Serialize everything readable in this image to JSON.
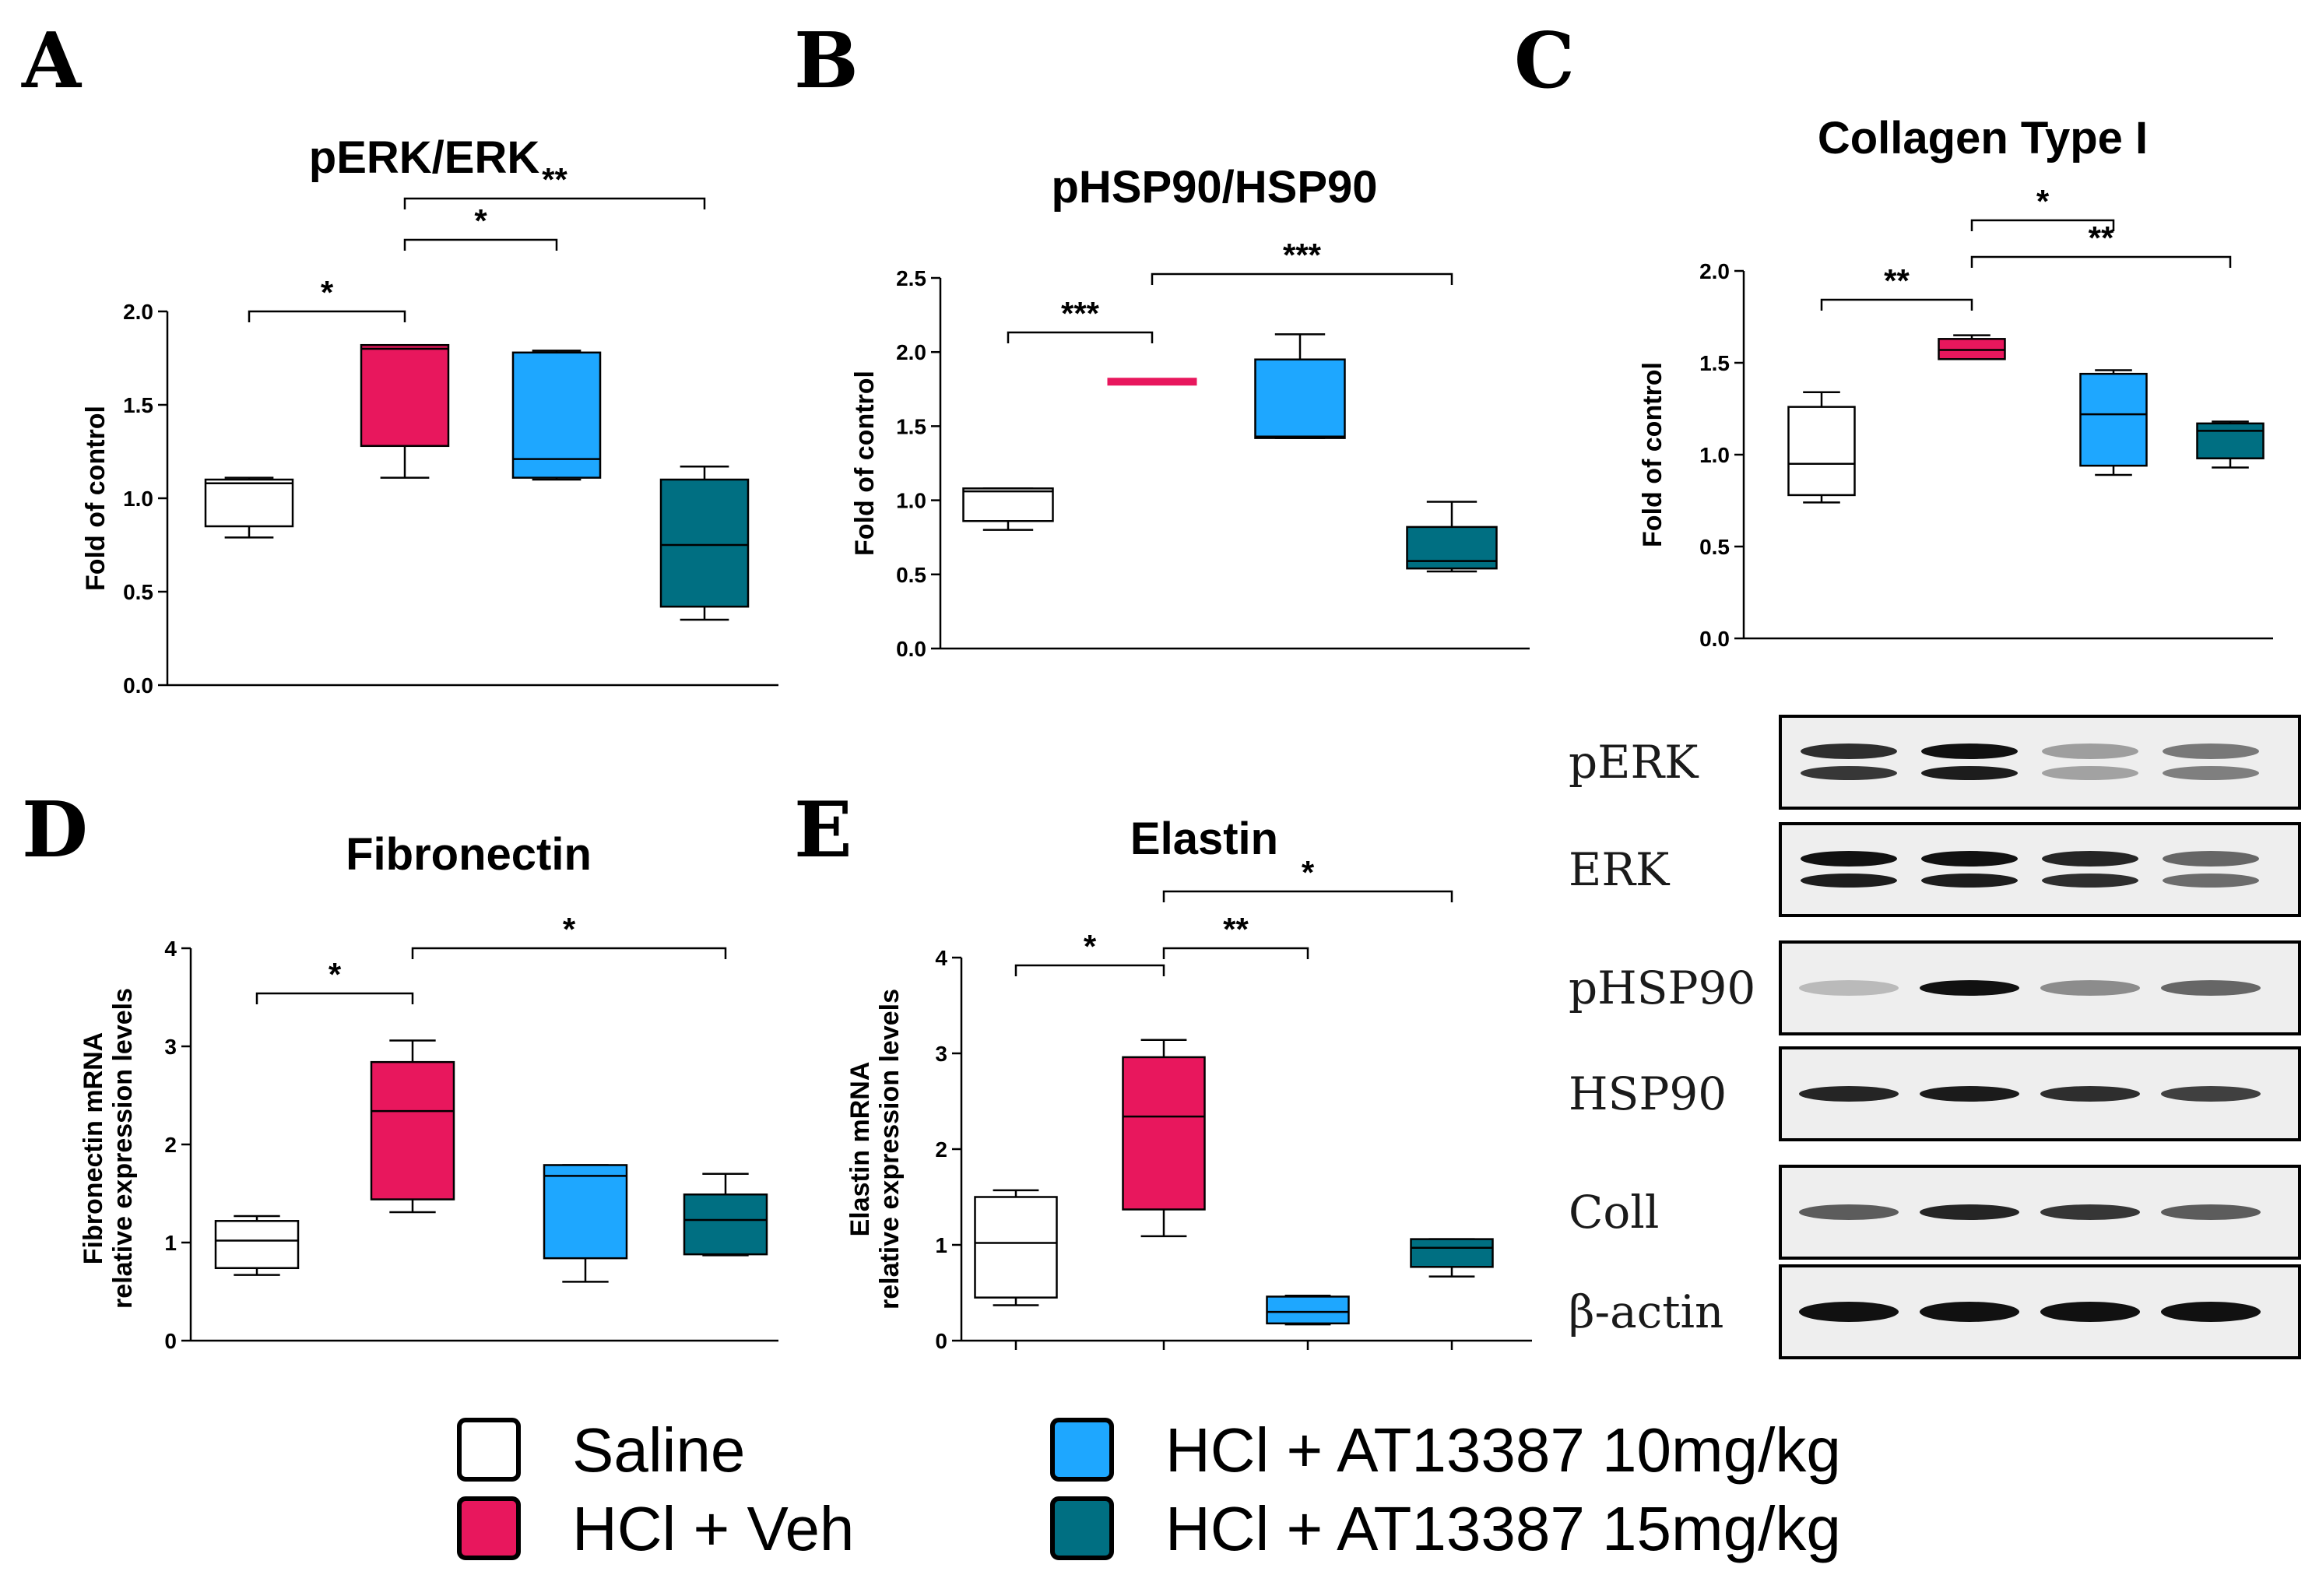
{
  "colors": {
    "saline": "#ffffff",
    "hcl_veh": "#e8175d",
    "at10": "#1ea7ff",
    "at15": "#006f82"
  },
  "legend": [
    {
      "label": "Saline",
      "color": "#ffffff"
    },
    {
      "label": "HCl + Veh",
      "color": "#e8175d"
    },
    {
      "label": "HCl + AT13387 10mg/kg",
      "color": "#1ea7ff"
    },
    {
      "label": "HCl + AT13387 15mg/kg",
      "color": "#006f82"
    }
  ],
  "chart_data": [
    {
      "panel": "A",
      "type": "box",
      "title": "pERK/ERK",
      "ylabel": "Fold of control",
      "ylim": [
        0,
        2.0
      ],
      "yticks": [
        "0.0",
        "0.5",
        "1.0",
        "1.5",
        "2.0"
      ],
      "groups": [
        "Saline",
        "HCl + Veh",
        "HCl + AT13387 10mg/kg",
        "HCl + AT13387 15mg/kg"
      ],
      "boxes": [
        {
          "min": 0.79,
          "q1": 0.85,
          "median": 1.08,
          "q3": 1.1,
          "max": 1.11
        },
        {
          "min": 1.11,
          "q1": 1.28,
          "median": 1.8,
          "q3": 1.82,
          "max": 1.82
        },
        {
          "min": 1.1,
          "q1": 1.11,
          "median": 1.21,
          "q3": 1.78,
          "max": 1.79
        },
        {
          "min": 0.35,
          "q1": 0.42,
          "median": 0.75,
          "q3": 1.1,
          "max": 1.17
        }
      ],
      "significance": [
        {
          "from": 0,
          "to": 1,
          "label": "*"
        },
        {
          "from": 1,
          "to": 2,
          "label": "*"
        },
        {
          "from": 1,
          "to": 3,
          "label": "**"
        }
      ]
    },
    {
      "panel": "B",
      "type": "box",
      "title": "pHSP90/HSP90",
      "ylabel": "Fold of control",
      "ylim": [
        0,
        2.5
      ],
      "yticks": [
        "0.0",
        "0.5",
        "1.0",
        "1.5",
        "2.0",
        "2.5"
      ],
      "groups": [
        "Saline",
        "HCl + Veh",
        "HCl + AT13387 10mg/kg",
        "HCl + AT13387 15mg/kg"
      ],
      "boxes": [
        {
          "min": 0.8,
          "q1": 0.86,
          "median": 1.06,
          "q3": 1.08,
          "max": 1.08
        },
        {
          "min": 1.8,
          "q1": 1.8,
          "median": 1.8,
          "q3": 1.8,
          "max": 1.8
        },
        {
          "min": 1.42,
          "q1": 1.42,
          "median": 1.43,
          "q3": 1.95,
          "max": 2.12
        },
        {
          "min": 0.52,
          "q1": 0.54,
          "median": 0.59,
          "q3": 0.82,
          "max": 0.99
        }
      ],
      "significance": [
        {
          "from": 0,
          "to": 1,
          "label": "***"
        },
        {
          "from": 1,
          "to": 3,
          "label": "***"
        }
      ]
    },
    {
      "panel": "C",
      "type": "box",
      "title": "Collagen Type I",
      "ylabel": "Fold of control",
      "ylim": [
        0,
        2.0
      ],
      "yticks": [
        "0.0",
        "0.5",
        "1.0",
        "1.5",
        "2.0"
      ],
      "groups": [
        "Saline",
        "HCl + Veh",
        "HCl + AT13387 10mg/kg",
        "HCl + AT13387 15mg/kg"
      ],
      "boxes": [
        {
          "min": 0.74,
          "q1": 0.78,
          "median": 0.95,
          "q3": 1.26,
          "max": 1.34
        },
        {
          "min": 1.52,
          "q1": 1.52,
          "median": 1.57,
          "q3": 1.63,
          "max": 1.65
        },
        {
          "min": 0.89,
          "q1": 0.94,
          "median": 1.22,
          "q3": 1.44,
          "max": 1.46
        },
        {
          "min": 0.93,
          "q1": 0.98,
          "median": 1.13,
          "q3": 1.17,
          "max": 1.18
        }
      ],
      "significance": [
        {
          "from": 0,
          "to": 1,
          "label": "**"
        },
        {
          "from": 1,
          "to": 2,
          "label": "*"
        },
        {
          "from": 1,
          "to": 3,
          "label": "**"
        }
      ]
    },
    {
      "panel": "D",
      "type": "box",
      "title": "Fibronectin",
      "ylabel": [
        "Fibronectin mRNA",
        "relative expression levels"
      ],
      "ylim": [
        0,
        4
      ],
      "yticks": [
        "0",
        "1",
        "2",
        "3",
        "4"
      ],
      "groups": [
        "Saline",
        "HCl + Veh",
        "HCl + AT13387 10mg/kg",
        "HCl + AT13387 15mg/kg"
      ],
      "boxes": [
        {
          "min": 0.67,
          "q1": 0.74,
          "median": 1.02,
          "q3": 1.22,
          "max": 1.27
        },
        {
          "min": 1.31,
          "q1": 1.44,
          "median": 2.34,
          "q3": 2.84,
          "max": 3.06
        },
        {
          "min": 0.6,
          "q1": 0.84,
          "median": 1.68,
          "q3": 1.79,
          "max": 1.79
        },
        {
          "min": 0.87,
          "q1": 0.88,
          "median": 1.23,
          "q3": 1.49,
          "max": 1.7
        }
      ],
      "significance": [
        {
          "from": 0,
          "to": 1,
          "label": "*"
        },
        {
          "from": 1,
          "to": 3,
          "label": "*"
        }
      ]
    },
    {
      "panel": "E",
      "type": "box",
      "title": "Elastin",
      "ylabel": [
        "Elastin mRNA",
        "relative expression levels"
      ],
      "ylim": [
        0,
        4
      ],
      "yticks": [
        "0",
        "1",
        "2",
        "3",
        "4"
      ],
      "groups": [
        "Saline",
        "HCl + Veh",
        "HCl + AT13387 10mg/kg",
        "HCl + AT13387 15mg/kg"
      ],
      "boxes": [
        {
          "min": 0.37,
          "q1": 0.45,
          "median": 1.02,
          "q3": 1.5,
          "max": 1.57
        },
        {
          "min": 1.09,
          "q1": 1.37,
          "median": 2.34,
          "q3": 2.96,
          "max": 3.14
        },
        {
          "min": 0.17,
          "q1": 0.18,
          "median": 0.3,
          "q3": 0.46,
          "max": 0.47
        },
        {
          "min": 0.67,
          "q1": 0.77,
          "median": 0.97,
          "q3": 1.06,
          "max": 1.06
        }
      ],
      "significance": [
        {
          "from": 0,
          "to": 1,
          "label": "*"
        },
        {
          "from": 1,
          "to": 2,
          "label": "**"
        },
        {
          "from": 1,
          "to": 3,
          "label": "*"
        }
      ]
    }
  ],
  "blot": {
    "rows": [
      {
        "label": "pERK",
        "bands": [
          0.85,
          1.0,
          0.25,
          0.45
        ]
      },
      {
        "label": "ERK",
        "bands": [
          1.0,
          1.0,
          0.9,
          0.55
        ]
      },
      {
        "label": "pHSP90",
        "bands": [
          0.1,
          1.0,
          0.35,
          0.55
        ]
      },
      {
        "label": "HSP90",
        "bands": [
          0.9,
          0.95,
          0.85,
          0.75
        ]
      },
      {
        "label": "Coll",
        "bands": [
          0.6,
          0.9,
          0.8,
          0.6
        ]
      },
      {
        "label": "β-actin",
        "bands": [
          1.0,
          1.0,
          1.0,
          1.0
        ]
      }
    ]
  }
}
